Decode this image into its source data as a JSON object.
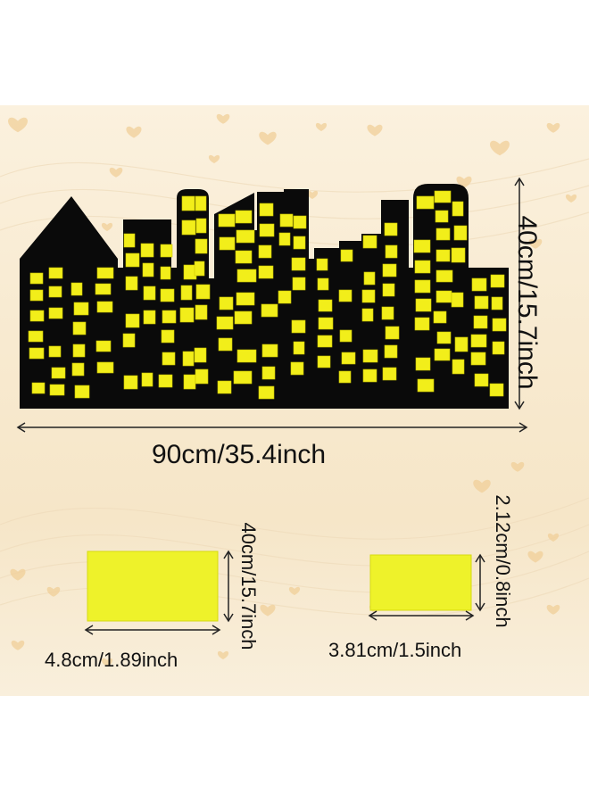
{
  "colors": {
    "silhouette": "#0a0a0a",
    "window": "#f2ee1a",
    "window_edge": "#c9c400",
    "background": "#f8ead0",
    "heart": "#f0cf98"
  },
  "labels": {
    "overall_width": "90cm/35.4inch",
    "overall_height": "40cm/15.7inch",
    "rect1_width": "4.8cm/1.89inch",
    "rect1_height": "40cm/15.7inch",
    "rect2_width": "3.81cm/1.5inch",
    "rect2_height": "2.12cm/0.8inch"
  },
  "icons": {
    "background_decor": "heart-icon",
    "dimension_arrow": "double-arrow-icon"
  }
}
